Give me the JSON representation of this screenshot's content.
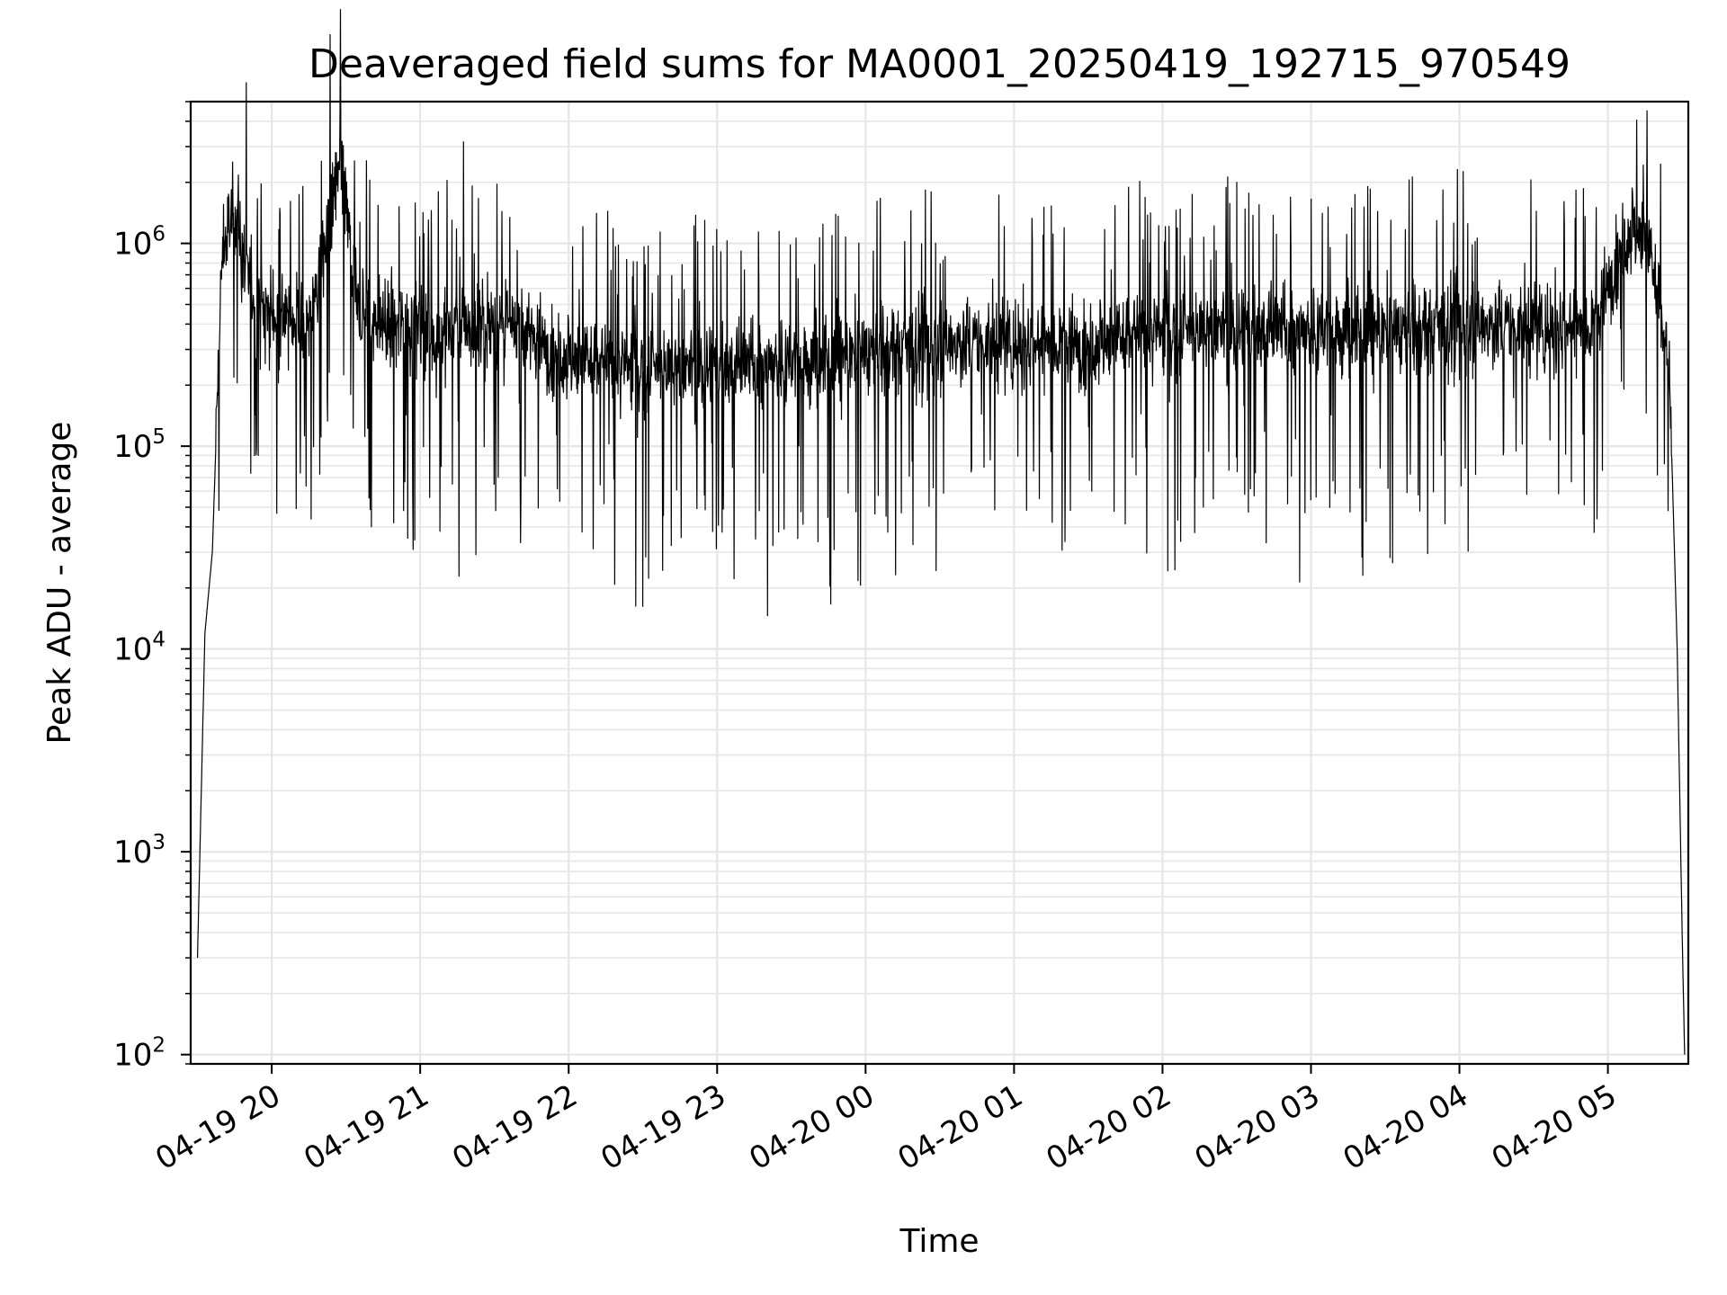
{
  "chart_data": {
    "type": "line",
    "title": "Deaveraged field sums for MA0001_20250419_192715_970549",
    "xlabel": "Time",
    "ylabel": "Peak ADU - average",
    "yscale": "log",
    "ylim": [
      90,
      5000000
    ],
    "xlim": [
      "2025-04-19T19:27:15",
      "2025-04-20T05:32:30"
    ],
    "grid": true,
    "legend": "none",
    "line_color": "#000000",
    "x_ticks": [
      {
        "t": "2025-04-19T20:00",
        "label": "04-19 20"
      },
      {
        "t": "2025-04-19T21:00",
        "label": "04-19 21"
      },
      {
        "t": "2025-04-19T22:00",
        "label": "04-19 22"
      },
      {
        "t": "2025-04-19T23:00",
        "label": "04-19 23"
      },
      {
        "t": "2025-04-20T00:00",
        "label": "04-20 00"
      },
      {
        "t": "2025-04-20T01:00",
        "label": "04-20 01"
      },
      {
        "t": "2025-04-20T02:00",
        "label": "04-20 02"
      },
      {
        "t": "2025-04-20T03:00",
        "label": "04-20 03"
      },
      {
        "t": "2025-04-20T04:00",
        "label": "04-20 04"
      },
      {
        "t": "2025-04-20T05:00",
        "label": "04-20 05"
      }
    ],
    "y_ticks": [
      {
        "value": 100,
        "base": "10",
        "exp": "2"
      },
      {
        "value": 1000,
        "base": "10",
        "exp": "3"
      },
      {
        "value": 10000,
        "base": "10",
        "exp": "4"
      },
      {
        "value": 100000,
        "base": "10",
        "exp": "5"
      },
      {
        "value": 1000000,
        "base": "10",
        "exp": "6"
      }
    ],
    "series": [
      {
        "x": [
          "2025-04-19T19:30",
          "2025-04-19T19:33",
          "2025-04-19T19:36",
          "2025-04-19T19:40",
          "2025-04-19T19:45",
          "2025-04-19T19:50",
          "2025-04-19T19:55",
          "2025-04-19T20:00",
          "2025-04-19T20:15",
          "2025-04-19T20:28",
          "2025-04-19T20:35",
          "2025-04-19T20:45",
          "2025-04-19T21:00",
          "2025-04-19T21:15",
          "2025-04-19T21:30",
          "2025-04-19T21:45",
          "2025-04-19T22:00",
          "2025-04-19T22:15",
          "2025-04-19T22:30",
          "2025-04-19T22:45",
          "2025-04-19T23:00",
          "2025-04-19T23:15",
          "2025-04-19T23:30",
          "2025-04-19T23:45",
          "2025-04-20T00:00",
          "2025-04-20T00:30",
          "2025-04-20T01:00",
          "2025-04-20T01:30",
          "2025-04-20T02:00",
          "2025-04-20T02:30",
          "2025-04-20T03:00",
          "2025-04-20T03:30",
          "2025-04-20T04:00",
          "2025-04-20T04:30",
          "2025-04-20T04:55",
          "2025-04-20T05:05",
          "2025-04-20T05:10",
          "2025-04-20T05:15",
          "2025-04-20T05:20",
          "2025-04-20T05:25",
          "2025-04-20T05:28",
          "2025-04-20T05:30",
          "2025-04-20T05:31"
        ],
        "y": [
          300,
          12000,
          30000,
          900000,
          1500000,
          700000,
          500000,
          450000,
          400000,
          2500000,
          450000,
          400000,
          380000,
          370000,
          400000,
          350000,
          280000,
          250000,
          240000,
          240000,
          250000,
          250000,
          260000,
          270000,
          300000,
          320000,
          320000,
          330000,
          360000,
          380000,
          370000,
          380000,
          400000,
          380000,
          400000,
          1000000,
          1200000,
          1100000,
          600000,
          200000,
          10000,
          400,
          100
        ]
      }
    ]
  }
}
